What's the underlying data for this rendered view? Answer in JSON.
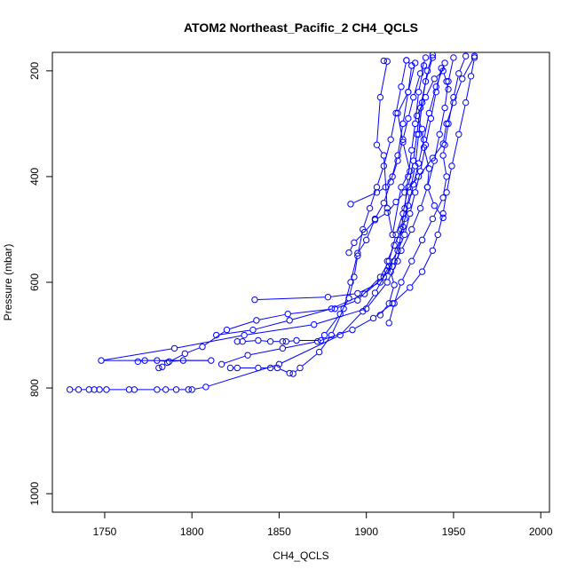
{
  "chart_data": {
    "type": "line",
    "title": "ATOM2 Northeast_Pacific_2 CH4_QCLS",
    "xlabel": "CH4_QCLS",
    "ylabel": "Pressure (mbar)",
    "xlim": [
      1720,
      2005
    ],
    "ylim": [
      1035,
      165
    ],
    "y_reversed": true,
    "grid": false,
    "marker": "open-circle",
    "series_color": "#0000ff",
    "x_ticks": [
      1750,
      1800,
      1850,
      1900,
      1950,
      2000
    ],
    "y_ticks": [
      200,
      400,
      600,
      800,
      1000
    ],
    "series": [
      {
        "points": [
          [
            1730,
            803
          ],
          [
            1735,
            803
          ],
          [
            1741,
            803
          ],
          [
            1744,
            803
          ],
          [
            1747,
            803
          ],
          [
            1751,
            803
          ],
          [
            1764,
            803
          ],
          [
            1767,
            803
          ],
          [
            1780,
            803
          ],
          [
            1785,
            803
          ],
          [
            1791,
            803
          ],
          [
            1798,
            803
          ],
          [
            1800,
            803
          ],
          [
            1808,
            798
          ],
          [
            1850,
            755
          ],
          [
            1885,
            700
          ],
          [
            1898,
            655
          ],
          [
            1905,
            620
          ],
          [
            1912,
            578
          ],
          [
            1916,
            560
          ],
          [
            1919,
            520
          ],
          [
            1922,
            480
          ],
          [
            1925,
            430
          ],
          [
            1928,
            380
          ],
          [
            1930,
            320
          ],
          [
            1932,
            260
          ],
          [
            1935,
            200
          ],
          [
            1938,
            170
          ]
        ]
      },
      {
        "points": [
          [
            1769,
            750
          ],
          [
            1773,
            748
          ],
          [
            1780,
            748
          ],
          [
            1787,
            750
          ],
          [
            1795,
            748
          ],
          [
            1811,
            748
          ],
          [
            1748,
            748
          ],
          [
            1790,
            725
          ],
          [
            1830,
            700
          ],
          [
            1870,
            680
          ],
          [
            1900,
            650
          ],
          [
            1912,
            600
          ],
          [
            1918,
            560
          ],
          [
            1920,
            500
          ],
          [
            1922,
            460
          ],
          [
            1924,
            400
          ],
          [
            1926,
            350
          ],
          [
            1928,
            300
          ],
          [
            1930,
            240
          ],
          [
            1933,
            190
          ]
        ]
      },
      {
        "points": [
          [
            1781,
            762
          ],
          [
            1783,
            760
          ],
          [
            1786,
            752
          ],
          [
            1796,
            735
          ],
          [
            1806,
            722
          ],
          [
            1820,
            690
          ],
          [
            1837,
            672
          ],
          [
            1855,
            660
          ],
          [
            1882,
            650
          ],
          [
            1895,
            634
          ],
          [
            1908,
            590
          ],
          [
            1913,
            560
          ],
          [
            1917,
            510
          ],
          [
            1921,
            470
          ],
          [
            1924,
            420
          ],
          [
            1927,
            370
          ],
          [
            1929,
            320
          ],
          [
            1931,
            270
          ],
          [
            1934,
            220
          ],
          [
            1938,
            175
          ]
        ]
      },
      {
        "points": [
          [
            1822,
            762
          ],
          [
            1826,
            762
          ],
          [
            1838,
            762
          ],
          [
            1845,
            762
          ],
          [
            1849,
            762
          ],
          [
            1856,
            772
          ],
          [
            1858,
            773
          ],
          [
            1862,
            762
          ],
          [
            1873,
            732
          ],
          [
            1880,
            700
          ],
          [
            1887,
            650
          ],
          [
            1891,
            600
          ],
          [
            1895,
            545
          ],
          [
            1900,
            520
          ],
          [
            1905,
            480
          ],
          [
            1910,
            450
          ],
          [
            1914,
            410
          ],
          [
            1918,
            360
          ],
          [
            1921,
            300
          ],
          [
            1924,
            240
          ],
          [
            1928,
            185
          ]
        ]
      },
      {
        "points": [
          [
            1826,
            712
          ],
          [
            1829,
            712
          ],
          [
            1838,
            710
          ],
          [
            1845,
            712
          ],
          [
            1852,
            712
          ],
          [
            1854,
            712
          ],
          [
            1860,
            710
          ],
          [
            1874,
            710
          ],
          [
            1876,
            700
          ],
          [
            1885,
            660
          ],
          [
            1890,
            630
          ],
          [
            1893,
            590
          ],
          [
            1895,
            550
          ],
          [
            1898,
            500
          ],
          [
            1902,
            460
          ],
          [
            1906,
            420
          ],
          [
            1910,
            380
          ],
          [
            1914,
            330
          ],
          [
            1917,
            280
          ],
          [
            1920,
            230
          ],
          [
            1923,
            180
          ]
        ]
      },
      {
        "points": [
          [
            1836,
            633
          ],
          [
            1878,
            628
          ],
          [
            1895,
            621
          ],
          [
            1908,
            600
          ],
          [
            1913,
            570
          ],
          [
            1918,
            540
          ],
          [
            1922,
            510
          ],
          [
            1925,
            470
          ],
          [
            1928,
            430
          ],
          [
            1931,
            390
          ],
          [
            1934,
            340
          ],
          [
            1937,
            290
          ],
          [
            1940,
            240
          ],
          [
            1943,
            195
          ]
        ]
      },
      {
        "points": [
          [
            1814,
            700
          ],
          [
            1835,
            690
          ],
          [
            1856,
            672
          ],
          [
            1880,
            650
          ],
          [
            1899,
            622
          ],
          [
            1910,
            590
          ],
          [
            1915,
            570
          ],
          [
            1920,
            540
          ],
          [
            1926,
            500
          ],
          [
            1931,
            460
          ],
          [
            1935,
            420
          ],
          [
            1939,
            370
          ],
          [
            1942,
            320
          ],
          [
            1945,
            270
          ],
          [
            1947,
            220
          ],
          [
            1950,
            175
          ]
        ]
      },
      {
        "points": [
          [
            1908,
            662
          ],
          [
            1913,
            640
          ],
          [
            1916,
            605
          ],
          [
            1914,
            580
          ],
          [
            1912,
            560
          ],
          [
            1916,
            530
          ],
          [
            1921,
            495
          ],
          [
            1924,
            455
          ],
          [
            1927,
            415
          ],
          [
            1930,
            375
          ],
          [
            1933,
            330
          ],
          [
            1936,
            280
          ],
          [
            1940,
            230
          ],
          [
            1945,
            185
          ]
        ]
      },
      {
        "points": [
          [
            1891,
            452
          ],
          [
            1906,
            430
          ],
          [
            1911,
            420
          ],
          [
            1915,
            400
          ],
          [
            1918,
            370
          ],
          [
            1921,
            330
          ],
          [
            1924,
            290
          ],
          [
            1927,
            250
          ],
          [
            1931,
            205
          ],
          [
            1934,
            175
          ]
        ]
      },
      {
        "points": [
          [
            1913,
            677
          ],
          [
            1916,
            640
          ],
          [
            1920,
            600
          ],
          [
            1926,
            560
          ],
          [
            1932,
            520
          ],
          [
            1938,
            480
          ],
          [
            1944,
            440
          ],
          [
            1946,
            400
          ],
          [
            1944,
            360
          ],
          [
            1945,
            340
          ],
          [
            1947,
            300
          ],
          [
            1950,
            250
          ],
          [
            1953,
            205
          ],
          [
            1957,
            172
          ]
        ]
      },
      {
        "points": [
          [
            1910,
            181
          ],
          [
            1912,
            182
          ],
          [
            1908,
            250
          ],
          [
            1906,
            340
          ],
          [
            1910,
            360
          ],
          [
            1912,
            460
          ],
          [
            1915,
            510
          ],
          [
            1920,
            420
          ],
          [
            1925,
            390
          ],
          [
            1921,
            335
          ],
          [
            1918,
            280
          ],
          [
            1924,
            240
          ],
          [
            1926,
            190
          ],
          [
            1923,
            180
          ]
        ]
      },
      {
        "points": [
          [
            1944,
            478
          ],
          [
            1939,
            455
          ],
          [
            1935,
            420
          ],
          [
            1936,
            385
          ],
          [
            1933,
            345
          ],
          [
            1932,
            310
          ],
          [
            1929,
            285
          ],
          [
            1934,
            250
          ],
          [
            1939,
            215
          ],
          [
            1944,
            200
          ],
          [
            1946,
            220
          ],
          [
            1947,
            235
          ]
        ]
      },
      {
        "points": [
          [
            1890,
            544
          ],
          [
            1893,
            525
          ],
          [
            1899,
            505
          ],
          [
            1905,
            482
          ],
          [
            1912,
            468
          ],
          [
            1917,
            448
          ],
          [
            1922,
            430
          ],
          [
            1930,
            400
          ],
          [
            1938,
            365
          ],
          [
            1944,
            338
          ],
          [
            1946,
            300
          ],
          [
            1950,
            260
          ],
          [
            1955,
            215
          ],
          [
            1962,
            172
          ]
        ]
      },
      {
        "points": [
          [
            1817,
            755
          ],
          [
            1832,
            738
          ],
          [
            1852,
            725
          ],
          [
            1872,
            712
          ],
          [
            1892,
            690
          ],
          [
            1904,
            668
          ],
          [
            1915,
            640
          ],
          [
            1925,
            610
          ],
          [
            1932,
            580
          ],
          [
            1938,
            540
          ],
          [
            1941,
            510
          ],
          [
            1944,
            470
          ],
          [
            1946,
            430
          ],
          [
            1949,
            380
          ],
          [
            1953,
            320
          ],
          [
            1957,
            260
          ],
          [
            1960,
            210
          ],
          [
            1962,
            175
          ]
        ]
      }
    ]
  }
}
